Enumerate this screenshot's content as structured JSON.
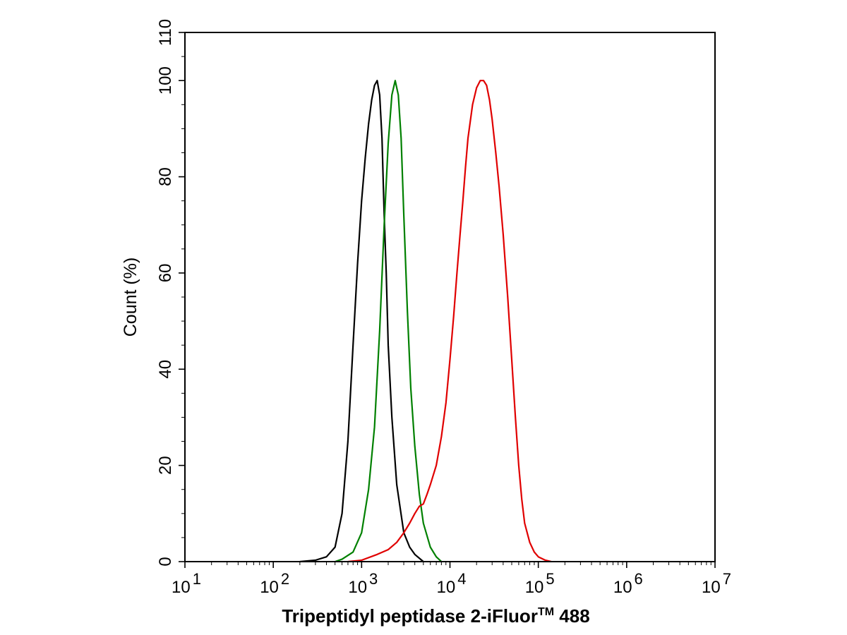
{
  "chart_data": {
    "type": "line",
    "xlabel_main": "Tripeptidyl peptidase 2-iFluor",
    "xlabel_sup": "TM",
    "xlabel_tail": " 488",
    "ylabel": "Count  (%)",
    "x_scale": "log",
    "xlim": [
      10,
      10000000
    ],
    "ylim": [
      0,
      110
    ],
    "x_ticks": [
      {
        "value": 10,
        "base": "10",
        "exp": "1"
      },
      {
        "value": 100,
        "base": "10",
        "exp": "2"
      },
      {
        "value": 1000,
        "base": "10",
        "exp": "3"
      },
      {
        "value": 10000,
        "base": "10",
        "exp": "4"
      },
      {
        "value": 100000,
        "base": "10",
        "exp": "5"
      },
      {
        "value": 1000000,
        "base": "10",
        "exp": "6"
      },
      {
        "value": 10000000,
        "base": "10",
        "exp": "7"
      }
    ],
    "y_ticks": [
      "0",
      "20",
      "40",
      "60",
      "80",
      "100",
      "110"
    ],
    "y_tick_values": [
      0,
      20,
      40,
      60,
      80,
      100,
      110
    ],
    "grid": false,
    "legend": "none",
    "series": [
      {
        "color": "#000000",
        "points": [
          [
            200,
            0
          ],
          [
            300,
            0.3
          ],
          [
            400,
            1
          ],
          [
            500,
            3
          ],
          [
            600,
            10
          ],
          [
            700,
            25
          ],
          [
            800,
            45
          ],
          [
            900,
            62
          ],
          [
            1000,
            75
          ],
          [
            1100,
            84
          ],
          [
            1200,
            91
          ],
          [
            1300,
            96
          ],
          [
            1400,
            99
          ],
          [
            1500,
            100
          ],
          [
            1600,
            97
          ],
          [
            1700,
            88
          ],
          [
            1800,
            72
          ],
          [
            1900,
            60
          ],
          [
            2000,
            45
          ],
          [
            2200,
            30
          ],
          [
            2500,
            16
          ],
          [
            3000,
            6
          ],
          [
            3500,
            3
          ],
          [
            4000,
            1.5
          ],
          [
            5000,
            0
          ]
        ]
      },
      {
        "color": "#008000",
        "points": [
          [
            500,
            0
          ],
          [
            600,
            0.5
          ],
          [
            800,
            2
          ],
          [
            1000,
            6
          ],
          [
            1200,
            15
          ],
          [
            1400,
            28
          ],
          [
            1600,
            48
          ],
          [
            1800,
            70
          ],
          [
            2000,
            87
          ],
          [
            2200,
            97
          ],
          [
            2400,
            100
          ],
          [
            2600,
            97
          ],
          [
            2800,
            88
          ],
          [
            3000,
            72
          ],
          [
            3300,
            52
          ],
          [
            3600,
            36
          ],
          [
            4000,
            24
          ],
          [
            4500,
            14
          ],
          [
            5000,
            8
          ],
          [
            6000,
            3
          ],
          [
            7000,
            1
          ],
          [
            8000,
            0
          ]
        ]
      },
      {
        "color": "#e00000",
        "points": [
          [
            700,
            0
          ],
          [
            1000,
            0.3
          ],
          [
            1500,
            1.5
          ],
          [
            2000,
            2.5
          ],
          [
            2500,
            4
          ],
          [
            3000,
            6
          ],
          [
            3500,
            8
          ],
          [
            4000,
            10
          ],
          [
            4500,
            11.5
          ],
          [
            5000,
            12
          ],
          [
            5500,
            14
          ],
          [
            6000,
            16
          ],
          [
            7000,
            20
          ],
          [
            8000,
            26
          ],
          [
            9000,
            33
          ],
          [
            10000,
            42
          ],
          [
            11000,
            51
          ],
          [
            12000,
            60
          ],
          [
            13000,
            68
          ],
          [
            14000,
            75
          ],
          [
            15000,
            82
          ],
          [
            16000,
            88
          ],
          [
            18000,
            95
          ],
          [
            20000,
            98.5
          ],
          [
            22000,
            100
          ],
          [
            24000,
            100
          ],
          [
            26000,
            99
          ],
          [
            28000,
            96
          ],
          [
            30000,
            92
          ],
          [
            33000,
            85
          ],
          [
            36000,
            78
          ],
          [
            40000,
            68
          ],
          [
            45000,
            55
          ],
          [
            50000,
            42
          ],
          [
            55000,
            30
          ],
          [
            60000,
            20
          ],
          [
            65000,
            13
          ],
          [
            70000,
            8
          ],
          [
            80000,
            4
          ],
          [
            90000,
            2
          ],
          [
            100000,
            1
          ],
          [
            120000,
            0.3
          ],
          [
            140000,
            0
          ]
        ]
      }
    ]
  }
}
